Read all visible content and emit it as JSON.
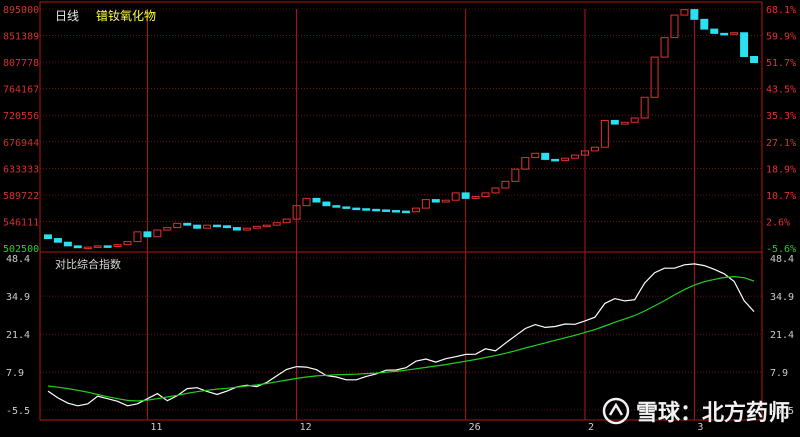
{
  "header": {
    "period": "日线",
    "name": "镨钕氧化物"
  },
  "lower_panel": {
    "title": "对比综合指数"
  },
  "watermark": {
    "text": "雪球：北方药师"
  },
  "colors": {
    "up": "#e53030",
    "down": "#2be0f0",
    "frame": "#b01818",
    "white_line": "#ffffff",
    "green_line": "#22d022",
    "pct_up": "#e53030",
    "pct_down": "#22d022"
  },
  "chart_data": [
    {
      "type": "candlestick",
      "y_left_ticks": [
        "895000",
        "851389",
        "807778",
        "764167",
        "720556",
        "676944",
        "633333",
        "589722",
        "546111",
        "502500"
      ],
      "y_right_ticks": [
        "68.1%",
        "59.9%",
        "51.7%",
        "43.5%",
        "35.3%",
        "27.1%",
        "18.9%",
        "10.7%",
        "2.6%",
        "-5.6%"
      ],
      "ylim": [
        502500,
        895000
      ],
      "x_tick_labels": [
        "11",
        "12",
        "26",
        "2",
        "3"
      ],
      "candles": [
        {
          "o": 524000,
          "c": 518000
        },
        {
          "o": 518000,
          "c": 512000
        },
        {
          "o": 512000,
          "c": 506000
        },
        {
          "o": 506000,
          "c": 503000
        },
        {
          "o": 503000,
          "c": 504000
        },
        {
          "o": 504000,
          "c": 506000
        },
        {
          "o": 506000,
          "c": 505000
        },
        {
          "o": 505000,
          "c": 508000
        },
        {
          "o": 508000,
          "c": 513000
        },
        {
          "o": 513000,
          "c": 529000
        },
        {
          "o": 529000,
          "c": 521000
        },
        {
          "o": 521000,
          "c": 532000
        },
        {
          "o": 532000,
          "c": 536000
        },
        {
          "o": 536000,
          "c": 543000
        },
        {
          "o": 543000,
          "c": 540000
        },
        {
          "o": 540000,
          "c": 535000
        },
        {
          "o": 535000,
          "c": 540000
        },
        {
          "o": 540000,
          "c": 539000
        },
        {
          "o": 539000,
          "c": 536000
        },
        {
          "o": 536000,
          "c": 532000
        },
        {
          "o": 532000,
          "c": 535000
        },
        {
          "o": 535000,
          "c": 538000
        },
        {
          "o": 538000,
          "c": 540000
        },
        {
          "o": 540000,
          "c": 544000
        },
        {
          "o": 544000,
          "c": 550000
        },
        {
          "o": 550000,
          "c": 572000
        },
        {
          "o": 572000,
          "c": 584000
        },
        {
          "o": 584000,
          "c": 578000
        },
        {
          "o": 578000,
          "c": 572000
        },
        {
          "o": 572000,
          "c": 570000
        },
        {
          "o": 570000,
          "c": 568000
        },
        {
          "o": 568000,
          "c": 567000
        },
        {
          "o": 567000,
          "c": 566000
        },
        {
          "o": 566000,
          "c": 565000
        },
        {
          "o": 565000,
          "c": 564000
        },
        {
          "o": 564000,
          "c": 563000
        },
        {
          "o": 563000,
          "c": 562000
        },
        {
          "o": 562000,
          "c": 568000
        },
        {
          "o": 568000,
          "c": 582000
        },
        {
          "o": 582000,
          "c": 578000
        },
        {
          "o": 578000,
          "c": 581000
        },
        {
          "o": 581000,
          "c": 593000
        },
        {
          "o": 593000,
          "c": 584000
        },
        {
          "o": 584000,
          "c": 587000
        },
        {
          "o": 587000,
          "c": 593000
        },
        {
          "o": 593000,
          "c": 601000
        },
        {
          "o": 601000,
          "c": 612000
        },
        {
          "o": 612000,
          "c": 632000
        },
        {
          "o": 632000,
          "c": 651000
        },
        {
          "o": 651000,
          "c": 658000
        },
        {
          "o": 658000,
          "c": 648000
        },
        {
          "o": 648000,
          "c": 646000
        },
        {
          "o": 646000,
          "c": 650000
        },
        {
          "o": 650000,
          "c": 655000
        },
        {
          "o": 655000,
          "c": 662000
        },
        {
          "o": 662000,
          "c": 668000
        },
        {
          "o": 668000,
          "c": 712000
        },
        {
          "o": 712000,
          "c": 706000
        },
        {
          "o": 706000,
          "c": 709000
        },
        {
          "o": 709000,
          "c": 716000
        },
        {
          "o": 716000,
          "c": 750000
        },
        {
          "o": 750000,
          "c": 816000
        },
        {
          "o": 816000,
          "c": 848000
        },
        {
          "o": 848000,
          "c": 885000
        },
        {
          "o": 885000,
          "c": 894000
        },
        {
          "o": 894000,
          "c": 878000
        },
        {
          "o": 878000,
          "c": 862000
        },
        {
          "o": 862000,
          "c": 855000
        },
        {
          "o": 855000,
          "c": 854000
        },
        {
          "o": 854000,
          "c": 856000
        },
        {
          "o": 856000,
          "c": 817000
        },
        {
          "o": 817000,
          "c": 807000
        }
      ]
    },
    {
      "type": "line",
      "title": "对比综合指数",
      "y_ticks": [
        "48.4",
        "34.9",
        "21.4",
        "7.9",
        "-5.5"
      ],
      "ylim": [
        -5.5,
        48.4
      ],
      "series": [
        {
          "color": "#ffffff",
          "values": [
            1.2,
            -1.2,
            -3.1,
            -4.0,
            -3.3,
            -0.6,
            -1.5,
            -2.4,
            -4.0,
            -3.3,
            -1.5,
            0.3,
            -2.2,
            -0.4,
            2.1,
            2.4,
            1.1,
            0.0,
            1.2,
            2.7,
            3.3,
            2.8,
            4.3,
            6.6,
            8.9,
            9.9,
            9.7,
            8.8,
            6.7,
            6.2,
            5.2,
            5.2,
            6.4,
            7.3,
            8.6,
            8.7,
            9.5,
            11.8,
            12.6,
            11.5,
            12.7,
            13.4,
            14.2,
            14.3,
            16.2,
            15.5,
            18.2,
            20.8,
            23.4,
            24.8,
            23.8,
            24.1,
            25.0,
            24.9,
            26.1,
            27.4,
            32.3,
            34.0,
            33.2,
            33.6,
            39.5,
            43.2,
            44.8,
            44.8,
            46.0,
            46.3,
            45.7,
            44.4,
            42.8,
            40.1,
            33.3,
            29.4
          ]
        },
        {
          "color": "#22d022",
          "values": [
            3.0,
            2.6,
            2.1,
            1.5,
            0.8,
            0.0,
            -0.8,
            -1.5,
            -2.1,
            -2.3,
            -2.0,
            -1.5,
            -0.9,
            -0.3,
            0.4,
            1.0,
            1.5,
            1.9,
            2.2,
            2.6,
            3.0,
            3.4,
            3.9,
            4.5,
            5.1,
            5.7,
            6.2,
            6.6,
            6.8,
            7.0,
            7.1,
            7.2,
            7.4,
            7.6,
            7.9,
            8.2,
            8.6,
            9.1,
            9.6,
            10.1,
            10.6,
            11.2,
            11.8,
            12.4,
            13.1,
            13.8,
            14.6,
            15.5,
            16.5,
            17.4,
            18.3,
            19.2,
            20.1,
            21.0,
            22.0,
            23.0,
            24.3,
            25.6,
            26.8,
            28.0,
            29.6,
            31.4,
            33.3,
            35.3,
            37.2,
            38.8,
            40.0,
            40.8,
            41.5,
            41.8,
            41.4,
            40.2
          ]
        }
      ]
    }
  ]
}
